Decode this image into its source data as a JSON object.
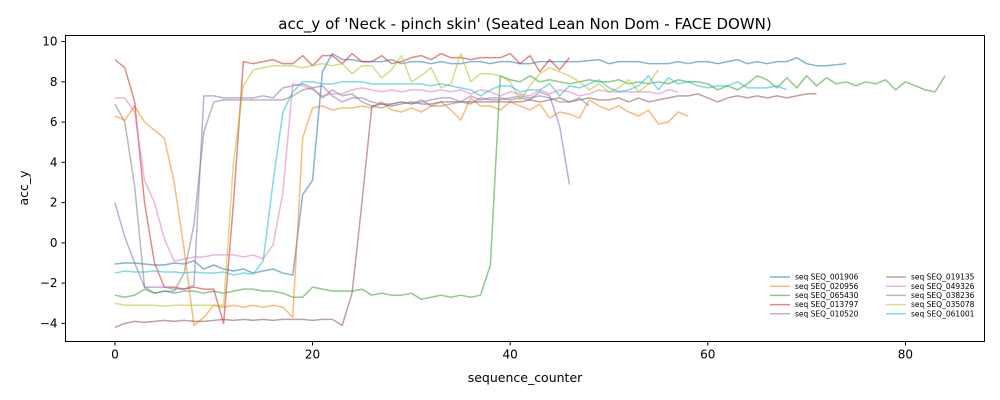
{
  "chart_data": {
    "type": "line",
    "title": "acc_y of 'Neck - pinch skin' (Seated Lean Non Dom - FACE DOWN)",
    "xlabel": "sequence_counter",
    "ylabel": "acc_y",
    "xlim": [
      -5,
      88
    ],
    "ylim": [
      -4.9,
      10.3
    ],
    "xticks": [
      0,
      20,
      40,
      60,
      80
    ],
    "yticks": [
      -4,
      -2,
      0,
      2,
      4,
      6,
      8,
      10
    ],
    "grid": false,
    "legend_position": "lower-right",
    "series": [
      {
        "name": "seq SEQ_001906",
        "color": "#1f77b4",
        "values": [
          -1.05,
          -1.0,
          -1.0,
          -1.05,
          -1.1,
          -1.1,
          -1.0,
          -1.05,
          -0.9,
          -1.3,
          -1.1,
          -1.3,
          -1.4,
          -1.3,
          -1.5,
          -1.4,
          -1.3,
          -1.5,
          -1.6,
          2.4,
          3.1,
          8.5,
          9.4,
          9.1,
          9.1,
          9.0,
          9.0,
          9.0,
          9.1,
          8.9,
          9.0,
          9.0,
          8.9,
          9.0,
          8.9,
          8.9,
          9.0,
          9.0,
          8.9,
          9.0,
          9.0,
          8.9,
          8.9,
          9.0,
          9.0,
          9.0,
          9.0,
          9.0,
          9.05,
          9.1,
          8.9,
          9.0,
          9.0,
          9.0,
          8.9,
          8.9,
          8.9,
          9.0,
          8.9,
          9.0,
          9.0,
          8.9,
          9.0,
          9.1,
          8.9,
          9.0,
          8.9,
          9.0,
          9.0,
          9.2,
          8.9,
          8.8,
          8.8,
          8.85,
          8.9
        ]
      },
      {
        "name": "seq SEQ_020956",
        "color": "#ff7f0e",
        "values": [
          6.3,
          6.1,
          6.8,
          6.0,
          5.6,
          5.2,
          3.0,
          -0.3,
          -4.1,
          -3.7,
          -3.1,
          -3.2,
          -3.1,
          -3.2,
          -3.1,
          -3.2,
          -3.1,
          -3.2,
          -3.7,
          5.2,
          6.7,
          6.8,
          6.6,
          6.7,
          6.7,
          6.8,
          6.7,
          7.0,
          6.6,
          6.5,
          6.7,
          6.5,
          6.8,
          7.0,
          6.6,
          6.1,
          7.2,
          6.8,
          6.8,
          6.6,
          7.0,
          6.8,
          6.6,
          6.9,
          6.2,
          6.5,
          6.4,
          6.2,
          7.1,
          6.8,
          6.6,
          6.8,
          6.5,
          6.3,
          6.6,
          5.9,
          6.0,
          6.5,
          6.3
        ]
      },
      {
        "name": "seq SEQ_065430",
        "color": "#2ca02c",
        "values": [
          -2.6,
          -2.7,
          -2.6,
          -2.3,
          -2.5,
          -2.4,
          -2.5,
          -2.4,
          -2.4,
          -2.5,
          -2.4,
          -2.5,
          -2.4,
          -2.3,
          -2.3,
          -2.4,
          -2.4,
          -2.5,
          -2.7,
          -2.7,
          -2.2,
          -2.3,
          -2.4,
          -2.4,
          -2.4,
          -2.3,
          -2.6,
          -2.5,
          -2.6,
          -2.6,
          -2.5,
          -2.8,
          -2.7,
          -2.6,
          -2.7,
          -2.6,
          -2.7,
          -2.6,
          -1.1,
          8.3,
          8.1,
          8.0,
          8.3,
          8.0,
          8.1,
          8.0,
          7.9,
          8.0,
          8.1,
          8.0,
          8.0,
          8.1,
          7.9,
          8.0,
          7.9,
          8.0,
          7.9,
          8.1,
          8.0,
          8.0,
          7.9,
          7.6,
          7.8,
          7.6,
          7.9,
          8.3,
          8.1,
          7.7,
          8.2,
          7.7,
          8.3,
          7.8,
          8.2,
          7.9,
          8.0,
          7.8,
          8.0,
          7.9,
          8.1,
          7.6,
          8.0,
          7.8,
          7.6,
          7.5,
          8.3
        ]
      },
      {
        "name": "seq SEQ_013797",
        "color": "#d62728",
        "values": [
          9.1,
          8.7,
          7.0,
          2.0,
          -1.0,
          -2.2,
          -2.2,
          -2.3,
          -2.2,
          -2.3,
          -2.3,
          -4.0,
          2.0,
          9.0,
          8.9,
          9.0,
          9.1,
          8.9,
          8.9,
          9.3,
          8.8,
          9.3,
          9.3,
          8.9,
          9.4,
          9.0,
          9.0,
          9.3,
          8.9,
          9.0,
          9.2,
          9.3,
          9.1,
          9.4,
          9.2,
          9.2,
          9.1,
          9.2,
          9.2,
          9.2,
          9.4,
          8.9,
          9.3,
          8.5,
          9.1,
          8.6,
          9.2
        ]
      },
      {
        "name": "seq SEQ_010520",
        "color": "#9467bd",
        "values": [
          2.0,
          0.3,
          -1.0,
          -2.2,
          -2.2,
          -2.2,
          -2.3,
          -2.3,
          -2.1,
          7.3,
          7.3,
          7.2,
          7.2,
          7.2,
          7.2,
          7.3,
          7.2,
          7.7,
          7.8,
          7.9,
          7.7,
          7.8,
          7.3,
          7.0,
          7.2,
          7.2,
          7.0,
          6.9,
          6.9,
          7.0,
          6.9,
          7.0,
          7.1,
          7.2,
          7.2,
          7.0,
          7.3,
          7.1,
          7.2,
          7.2,
          7.1,
          7.2,
          7.1,
          7.5,
          7.3,
          5.8,
          2.9
        ]
      },
      {
        "name": "seq SEQ_019135",
        "color": "#8c564b",
        "values": [
          -4.2,
          -4.0,
          -3.9,
          -3.95,
          -3.9,
          -3.85,
          -3.9,
          -3.85,
          -3.9,
          -3.9,
          -3.85,
          -3.8,
          -3.85,
          -3.8,
          -3.85,
          -3.8,
          -3.85,
          -3.8,
          -3.8,
          -3.8,
          -3.85,
          -3.8,
          -3.8,
          -4.1,
          -2.5,
          2.0,
          6.8,
          6.9,
          6.8,
          6.9,
          7.0,
          6.9,
          6.9,
          7.0,
          7.0,
          7.0,
          7.0,
          7.0,
          7.0,
          7.0,
          7.0,
          7.0,
          7.1,
          7.0,
          7.1,
          7.2,
          7.0,
          7.1,
          7.2,
          7.1,
          7.1,
          7.2,
          7.0,
          7.2,
          7.0,
          7.1,
          7.2,
          7.3,
          7.3,
          7.4,
          7.2,
          7.0,
          7.2,
          7.3,
          7.2,
          7.3,
          7.2,
          7.3,
          7.2,
          7.3,
          7.4,
          7.4
        ]
      },
      {
        "name": "seq SEQ_049326",
        "color": "#e377c2",
        "values": [
          7.2,
          7.2,
          6.5,
          3.1,
          2.0,
          0.2,
          -0.9,
          -0.8,
          -0.7,
          -0.7,
          -0.6,
          -0.6,
          -0.6,
          -0.7,
          -0.6,
          -0.8,
          -0.1,
          2.5,
          7.9,
          7.8,
          7.6,
          7.3,
          7.4,
          7.4,
          7.6,
          7.7,
          7.6,
          7.5,
          7.6,
          7.5,
          7.6,
          7.6,
          7.5,
          7.6,
          7.5,
          7.6,
          7.4,
          7.6,
          7.5,
          7.3,
          7.5,
          7.4,
          7.3,
          7.6,
          7.4,
          7.6,
          7.5,
          7.3,
          7.4,
          7.6,
          7.5,
          7.5,
          7.5,
          7.5,
          7.5,
          7.4,
          7.6,
          7.5
        ]
      },
      {
        "name": "seq SEQ_038236",
        "color": "#7f7f7f",
        "values": [
          6.9,
          6.0,
          2.8,
          -2.2,
          -2.5,
          -2.4,
          -2.4,
          -1.5,
          0.9,
          5.5,
          7.0,
          7.1,
          7.1,
          7.1,
          7.1,
          7.1,
          7.1,
          7.1,
          7.3,
          7.6,
          7.7,
          7.2,
          7.6,
          7.3,
          7.4,
          7.0,
          6.8,
          6.7,
          6.9,
          7.0,
          6.9,
          7.1,
          6.8,
          6.8,
          6.9,
          7.0,
          6.9,
          7.2,
          7.1,
          7.1,
          7.2,
          7.3,
          7.2,
          7.3,
          7.2,
          7.0,
          7.0,
          7.2,
          6.8
        ]
      },
      {
        "name": "seq SEQ_035078",
        "color": "#bcbd22",
        "values": [
          -3.0,
          -3.1,
          -3.1,
          -3.1,
          -3.1,
          -3.15,
          -3.1,
          -3.1,
          -3.1,
          -3.1,
          -3.1,
          -3.1,
          4.0,
          7.8,
          8.6,
          8.7,
          8.8,
          8.8,
          8.8,
          8.7,
          8.8,
          8.9,
          8.8,
          8.9,
          8.4,
          8.8,
          8.8,
          8.2,
          8.6,
          9.3,
          8.0,
          8.3,
          8.7,
          7.7,
          7.9,
          9.4,
          8.0,
          8.4,
          8.4,
          8.3,
          8.0,
          7.1,
          7.8,
          8.4,
          8.7,
          8.5,
          8.3,
          8.0,
          7.6,
          7.9,
          7.5,
          7.7,
          8.1,
          7.5,
          7.9,
          8.6
        ]
      },
      {
        "name": "seq SEQ_061001",
        "color": "#17becf",
        "values": [
          -1.5,
          -1.4,
          -1.45,
          -1.45,
          -1.4,
          -1.45,
          -1.45,
          -1.5,
          -1.45,
          -1.5,
          -1.5,
          -1.45,
          -1.6,
          -1.5,
          -1.55,
          -0.9,
          3.0,
          6.5,
          7.5,
          8.0,
          8.0,
          7.9,
          7.9,
          8.0,
          8.0,
          8.0,
          7.9,
          7.9,
          7.9,
          7.9,
          7.9,
          7.9,
          7.8,
          7.9,
          7.8,
          7.7,
          7.6,
          7.3,
          7.6,
          7.8,
          7.8,
          7.5,
          7.6,
          7.6,
          7.9,
          7.3,
          7.8,
          7.7,
          7.9,
          8.1,
          7.7,
          7.5,
          7.6,
          7.8,
          8.3,
          7.6,
          8.2,
          7.9,
          8.0,
          7.8,
          7.7,
          7.8,
          7.8,
          8.0,
          7.7,
          7.7,
          7.7,
          7.8,
          7.6
        ]
      }
    ]
  }
}
